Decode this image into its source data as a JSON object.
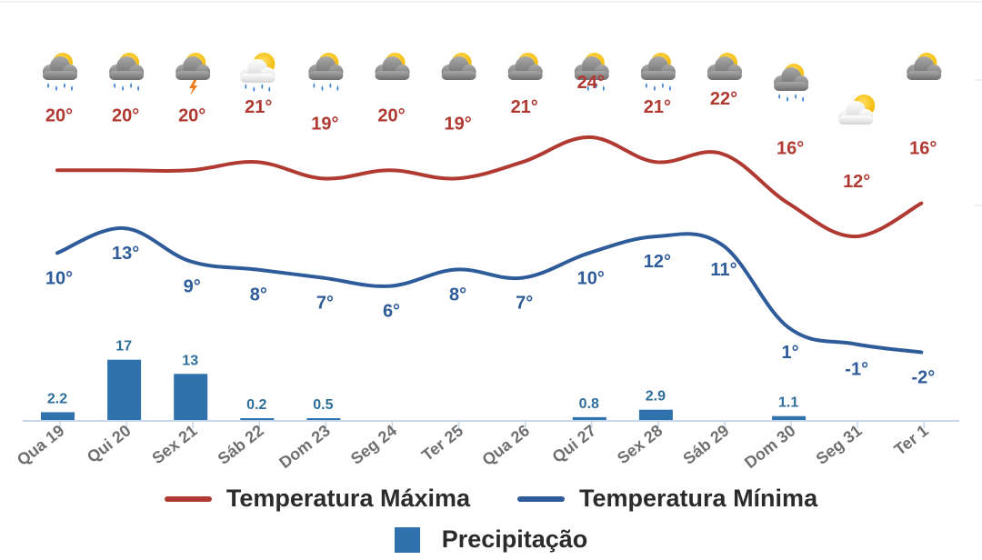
{
  "chart_data": {
    "type": "line",
    "categories": [
      "Qua 19",
      "Qui 20",
      "Sex 21",
      "Sáb 22",
      "Dom 23",
      "Seg 24",
      "Ter 25",
      "Qua 26",
      "Qui 27",
      "Sex 28",
      "Sáb 29",
      "Dom 30",
      "Seg 31",
      "Ter 1"
    ],
    "icons": [
      "rain-cloud-sun-icon",
      "rain-cloud-sun-icon",
      "thunderstorm-cloud-sun-icon",
      "sun-cloud-rain-icon",
      "rain-cloud-sun-icon",
      "cloud-sun-icon",
      "cloud-sun-icon",
      "cloud-sun-icon",
      "rain-cloud-sun-icon",
      "rain-cloud-sun-icon",
      "cloud-sun-icon",
      "rain-cloud-sun-icon",
      "sun-cloud-icon",
      "cloud-sun-icon"
    ],
    "series": [
      {
        "name": "Temperatura Máxima",
        "color": "#b03a32",
        "values": [
          20,
          20,
          20,
          21,
          19,
          20,
          19,
          21,
          24,
          21,
          22,
          16,
          12,
          16
        ],
        "labels": [
          "20°",
          "20°",
          "20°",
          "21°",
          "19°",
          "20°",
          "19°",
          "21°",
          "24°",
          "21°",
          "22°",
          "16°",
          "12°",
          "16°"
        ]
      },
      {
        "name": "Temperatura Mínima",
        "color": "#2e5b99",
        "values": [
          10,
          13,
          9,
          8,
          7,
          6,
          8,
          7,
          10,
          12,
          11,
          1,
          -1,
          -2
        ],
        "labels": [
          "10°",
          "13°",
          "9°",
          "8°",
          "7°",
          "6°",
          "8°",
          "7°",
          "10°",
          "12°",
          "11°",
          "1°",
          "-1°",
          "-2°"
        ]
      },
      {
        "name": "Precipitação",
        "color": "#2f72ad",
        "type": "bar",
        "values": [
          2.2,
          17,
          13,
          0.2,
          0.5,
          0,
          0,
          0,
          0.8,
          2.9,
          0,
          1.1,
          0,
          0
        ],
        "labels": [
          "2.2",
          "17",
          "13",
          "0.2",
          "0.5",
          "",
          "",
          "",
          "0.8",
          "2.9",
          "",
          "1.1",
          "",
          ""
        ]
      }
    ],
    "legend": {
      "max_label": "Temperatura Máxima",
      "min_label": "Temperatura Mínima",
      "precip_label": "Precipitação",
      "placement": "bottom"
    },
    "colors": {
      "max_line": "#b03a32",
      "min_line": "#2e5b99",
      "precip_bar": "#2f72ad",
      "max_label": "#b03a32",
      "min_label": "#2e5b99",
      "precip_label": "#2f6e9a",
      "axis_label": "#6f6f6f",
      "axis_line": "#c8d6ea"
    },
    "grid": false
  }
}
